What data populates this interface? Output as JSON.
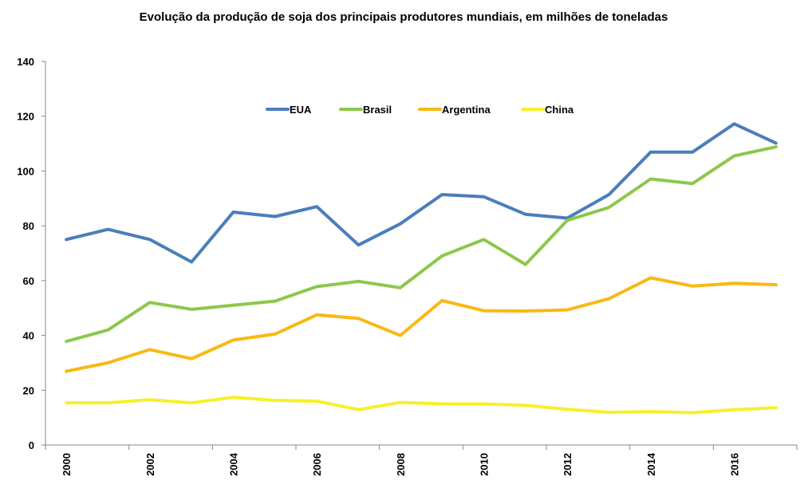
{
  "chart_data": {
    "type": "line",
    "title": "Evolução da produção de soja dos principais produtores mundiais, em milhões de toneladas",
    "xlabel": "",
    "ylabel": "",
    "ylim": [
      0,
      140
    ],
    "yticks": [
      0,
      20,
      40,
      60,
      80,
      100,
      120,
      140
    ],
    "x": [
      2000,
      2001,
      2002,
      2003,
      2004,
      2005,
      2006,
      2007,
      2008,
      2009,
      2010,
      2011,
      2012,
      2013,
      2014,
      2015,
      2016,
      2017
    ],
    "xtick_labels": [
      "2000",
      "2002",
      "2004",
      "2006",
      "2008",
      "2010",
      "2012",
      "2014",
      "2016"
    ],
    "grid": false,
    "legend_position": "top-center",
    "series": [
      {
        "name": "EUA",
        "color": "#4a7ebb",
        "values": [
          75.0,
          78.7,
          75.0,
          66.8,
          85.0,
          83.4,
          87.0,
          73.0,
          80.7,
          91.4,
          90.6,
          84.2,
          82.8,
          91.4,
          106.9,
          106.9,
          117.2,
          110.2
        ]
      },
      {
        "name": "Brasil",
        "color": "#8cc84b",
        "values": [
          37.8,
          42.0,
          52.0,
          49.5,
          51.0,
          52.5,
          57.8,
          59.7,
          57.4,
          69.0,
          75.0,
          65.9,
          82.0,
          86.7,
          97.1,
          95.4,
          105.5,
          108.8
        ]
      },
      {
        "name": "Argentina",
        "color": "#f9b814",
        "values": [
          26.9,
          30.0,
          34.8,
          31.5,
          38.3,
          40.5,
          47.5,
          46.2,
          40.0,
          52.7,
          49.0,
          48.9,
          49.3,
          53.4,
          61.0,
          58.0,
          59.0,
          58.5
        ]
      },
      {
        "name": "China",
        "color": "#f7f02a",
        "values": [
          15.4,
          15.4,
          16.5,
          15.4,
          17.4,
          16.3,
          16.0,
          12.9,
          15.5,
          15.0,
          15.0,
          14.5,
          13.0,
          11.9,
          12.2,
          11.8,
          12.9,
          13.6
        ]
      }
    ]
  }
}
